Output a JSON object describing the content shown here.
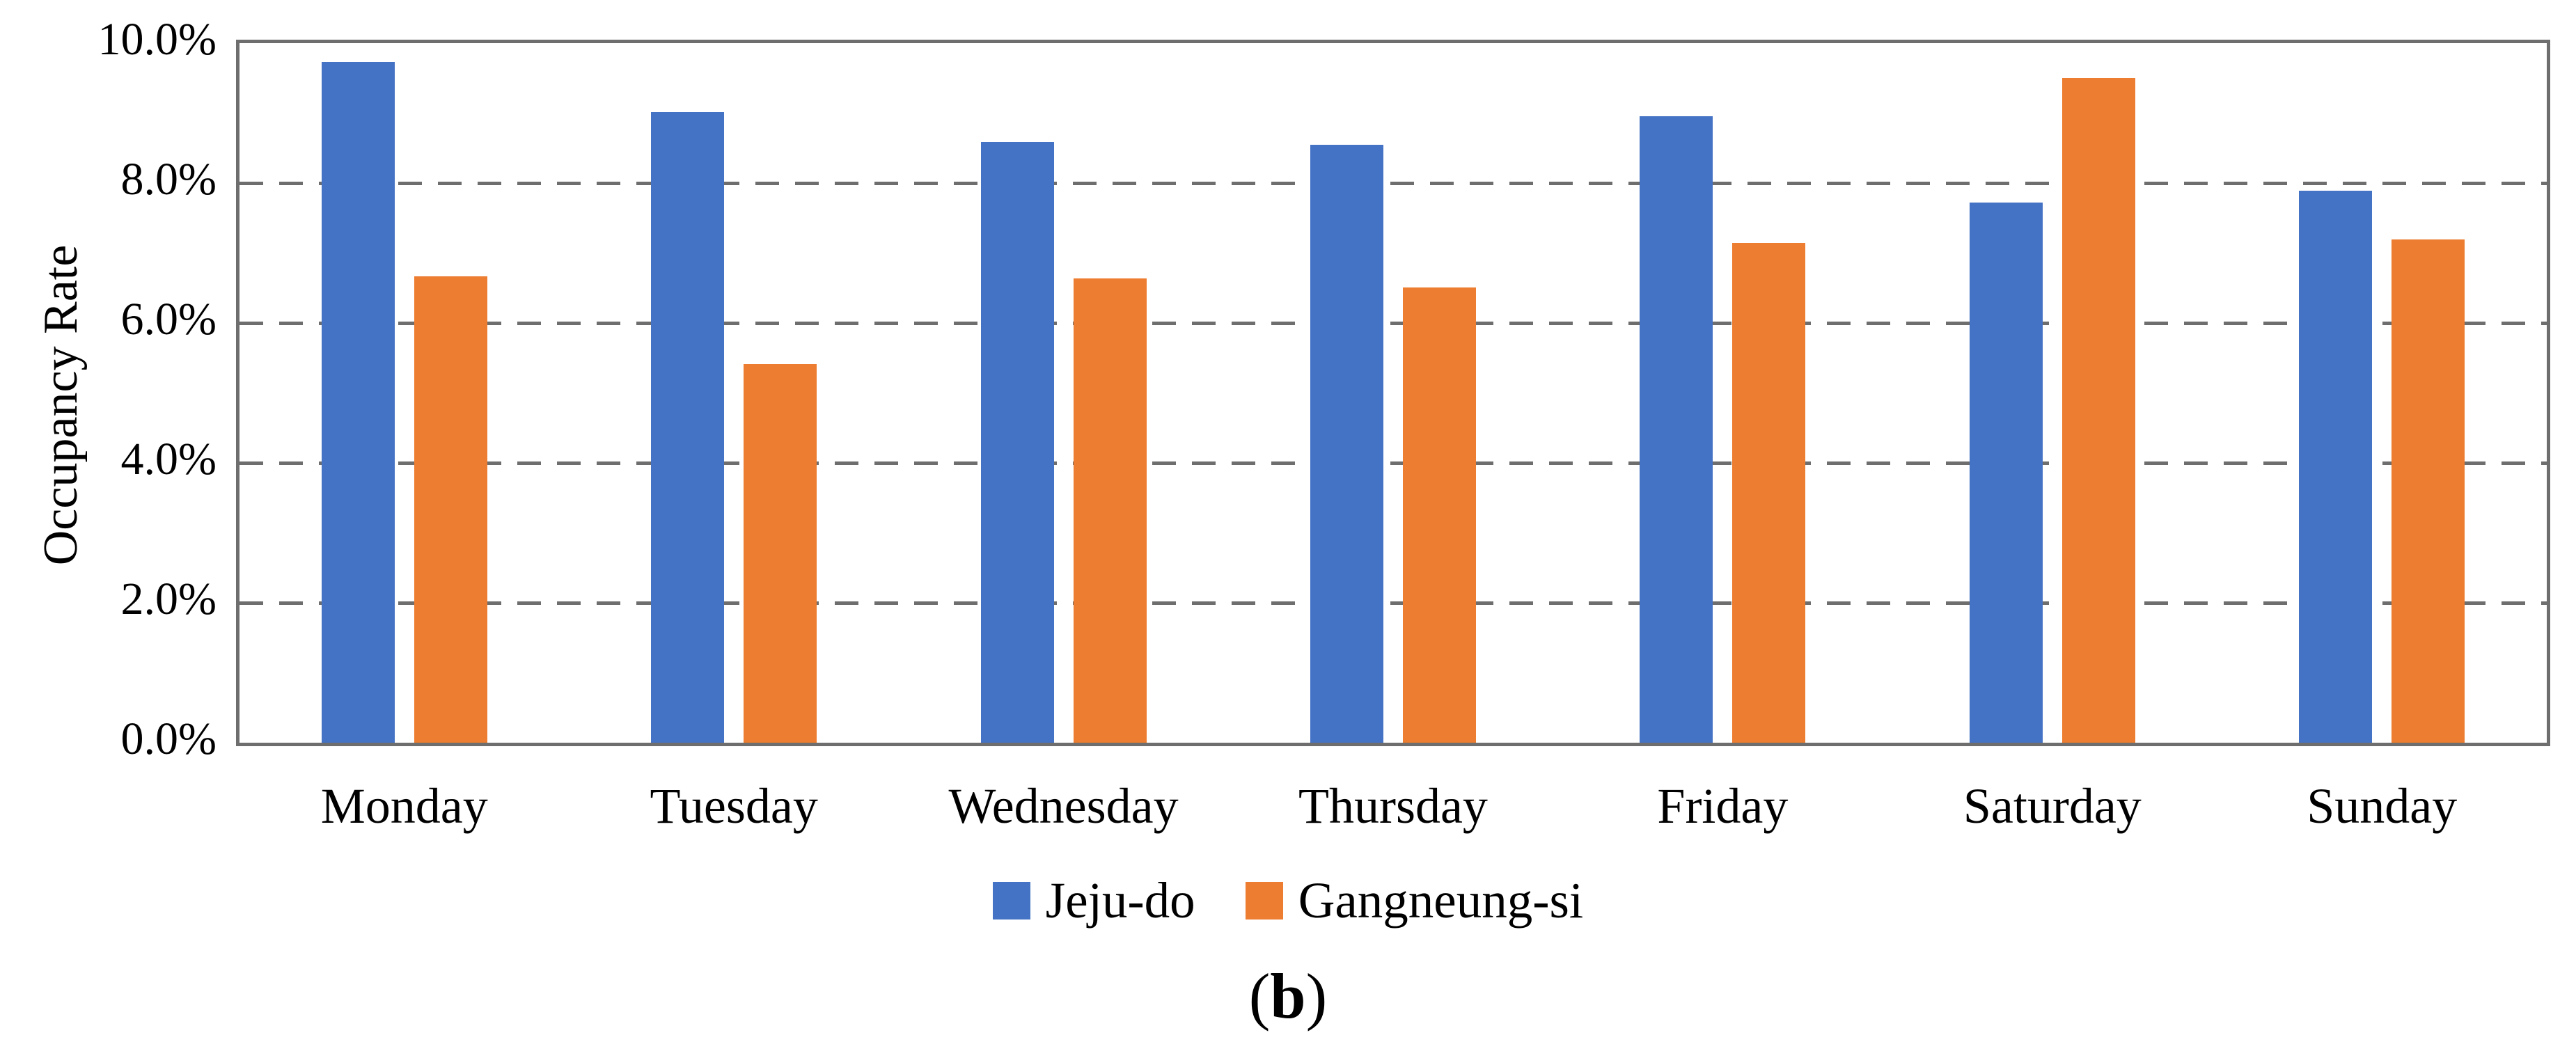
{
  "chart_data": {
    "type": "bar",
    "title": "",
    "categories": [
      "Monday",
      "Tuesday",
      "Wednesday",
      "Thursday",
      "Friday",
      "Saturday",
      "Sunday"
    ],
    "series": [
      {
        "name": "Jeju-do",
        "color": "#4472C4",
        "values": [
          9.73,
          9.02,
          8.59,
          8.55,
          8.96,
          7.72,
          7.89
        ]
      },
      {
        "name": "Gangneung-si",
        "color": "#ED7D31",
        "values": [
          6.67,
          5.41,
          6.64,
          6.51,
          7.14,
          9.5,
          7.19
        ]
      }
    ],
    "xlabel": "",
    "ylabel": "Occupancy Rate",
    "ylim": [
      0,
      10
    ],
    "ytick_step": 2,
    "ytick_labels": [
      "0.0%",
      "2.0%",
      "4.0%",
      "6.0%",
      "8.0%",
      "10.0%"
    ],
    "grid": "horizontal-dashed",
    "legend_position": "bottom"
  },
  "caption": {
    "open": "(",
    "letter": "b",
    "close": ")"
  },
  "colors": {
    "axis": "#6e6e6e",
    "gridline": "#6e6e6e",
    "series_blue": "#4472C4",
    "series_orange": "#ED7D31",
    "text": "#000000",
    "background": "#ffffff"
  }
}
